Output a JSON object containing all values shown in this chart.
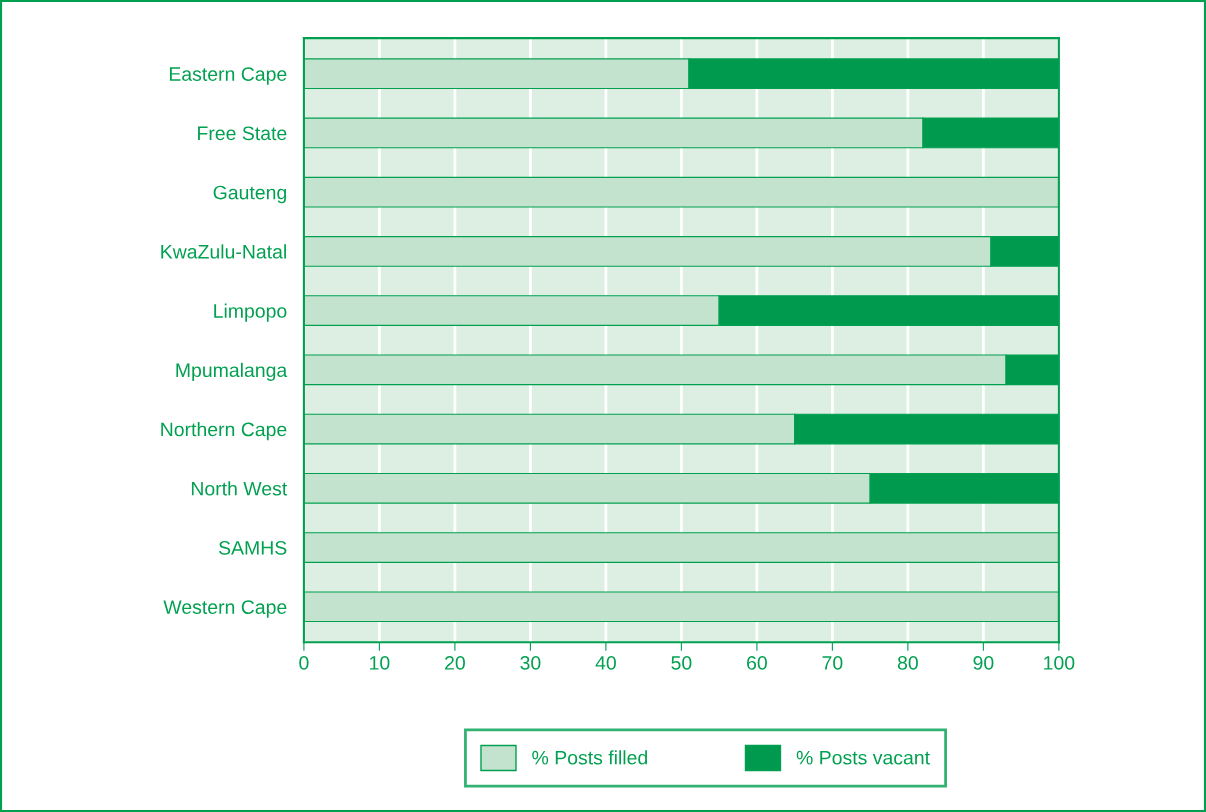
{
  "chart_data": {
    "type": "bar",
    "orientation": "horizontal",
    "stacked": true,
    "categories": [
      "Eastern Cape",
      "Free State",
      "Gauteng",
      "KwaZulu-Natal",
      "Limpopo",
      "Mpumalanga",
      "Northern Cape",
      "North West",
      "SAMHS",
      "Western Cape"
    ],
    "series": [
      {
        "name": "% Posts filled",
        "color": "#c4e3cf",
        "values": [
          51,
          82,
          100,
          91,
          55,
          93,
          65,
          75,
          100,
          100
        ]
      },
      {
        "name": "% Posts vacant",
        "color": "#009a4e",
        "values": [
          49,
          18,
          0,
          9,
          45,
          7,
          35,
          25,
          0,
          0
        ]
      }
    ],
    "xlim": [
      0,
      100
    ],
    "xticks": [
      0,
      10,
      20,
      30,
      40,
      50,
      60,
      70,
      80,
      90,
      100
    ],
    "grid": "x",
    "legend": "bottom"
  }
}
